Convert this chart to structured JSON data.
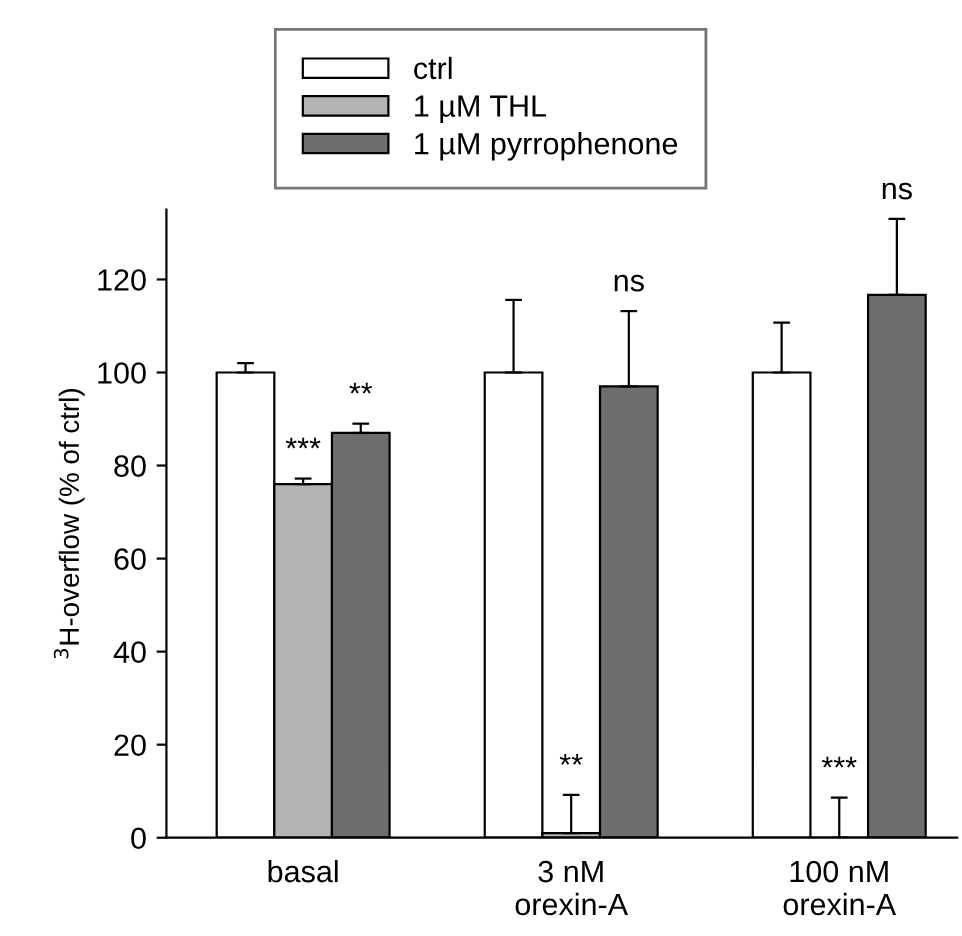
{
  "chart_data": {
    "type": "bar",
    "categories": [
      "basal",
      "3 nM\norexin-A",
      "100 nM\norexin-A"
    ],
    "ylabel": "$^{3}$H-overflow (% of ctrl)",
    "ylim": [
      0,
      135
    ],
    "yticks": [
      0,
      20,
      40,
      60,
      80,
      100,
      120
    ],
    "grid": false,
    "legend": "top",
    "series": [
      {
        "name": "ctrl",
        "color": "#ffffff",
        "values": [
          100,
          100,
          100
        ],
        "errors": [
          [
            100,
            102
          ],
          [
            100,
            115.6
          ],
          [
            100,
            110.7
          ]
        ]
      },
      {
        "name": "1 µM THL",
        "color": "#b4b4b4",
        "values": [
          76,
          1,
          0
        ],
        "errors": [
          [
            76,
            77.2
          ],
          [
            1,
            9.2
          ],
          [
            0,
            8.6
          ]
        ]
      },
      {
        "name": "1 µM pyrrophenone",
        "color": "#6e6e6e",
        "values": [
          87,
          97,
          116.7
        ],
        "errors": [
          [
            87,
            89
          ],
          [
            97,
            113.2
          ],
          [
            116.7,
            133
          ]
        ]
      }
    ],
    "annotations": [
      "***",
      "**",
      "**",
      "ns",
      "***",
      "ns"
    ]
  }
}
